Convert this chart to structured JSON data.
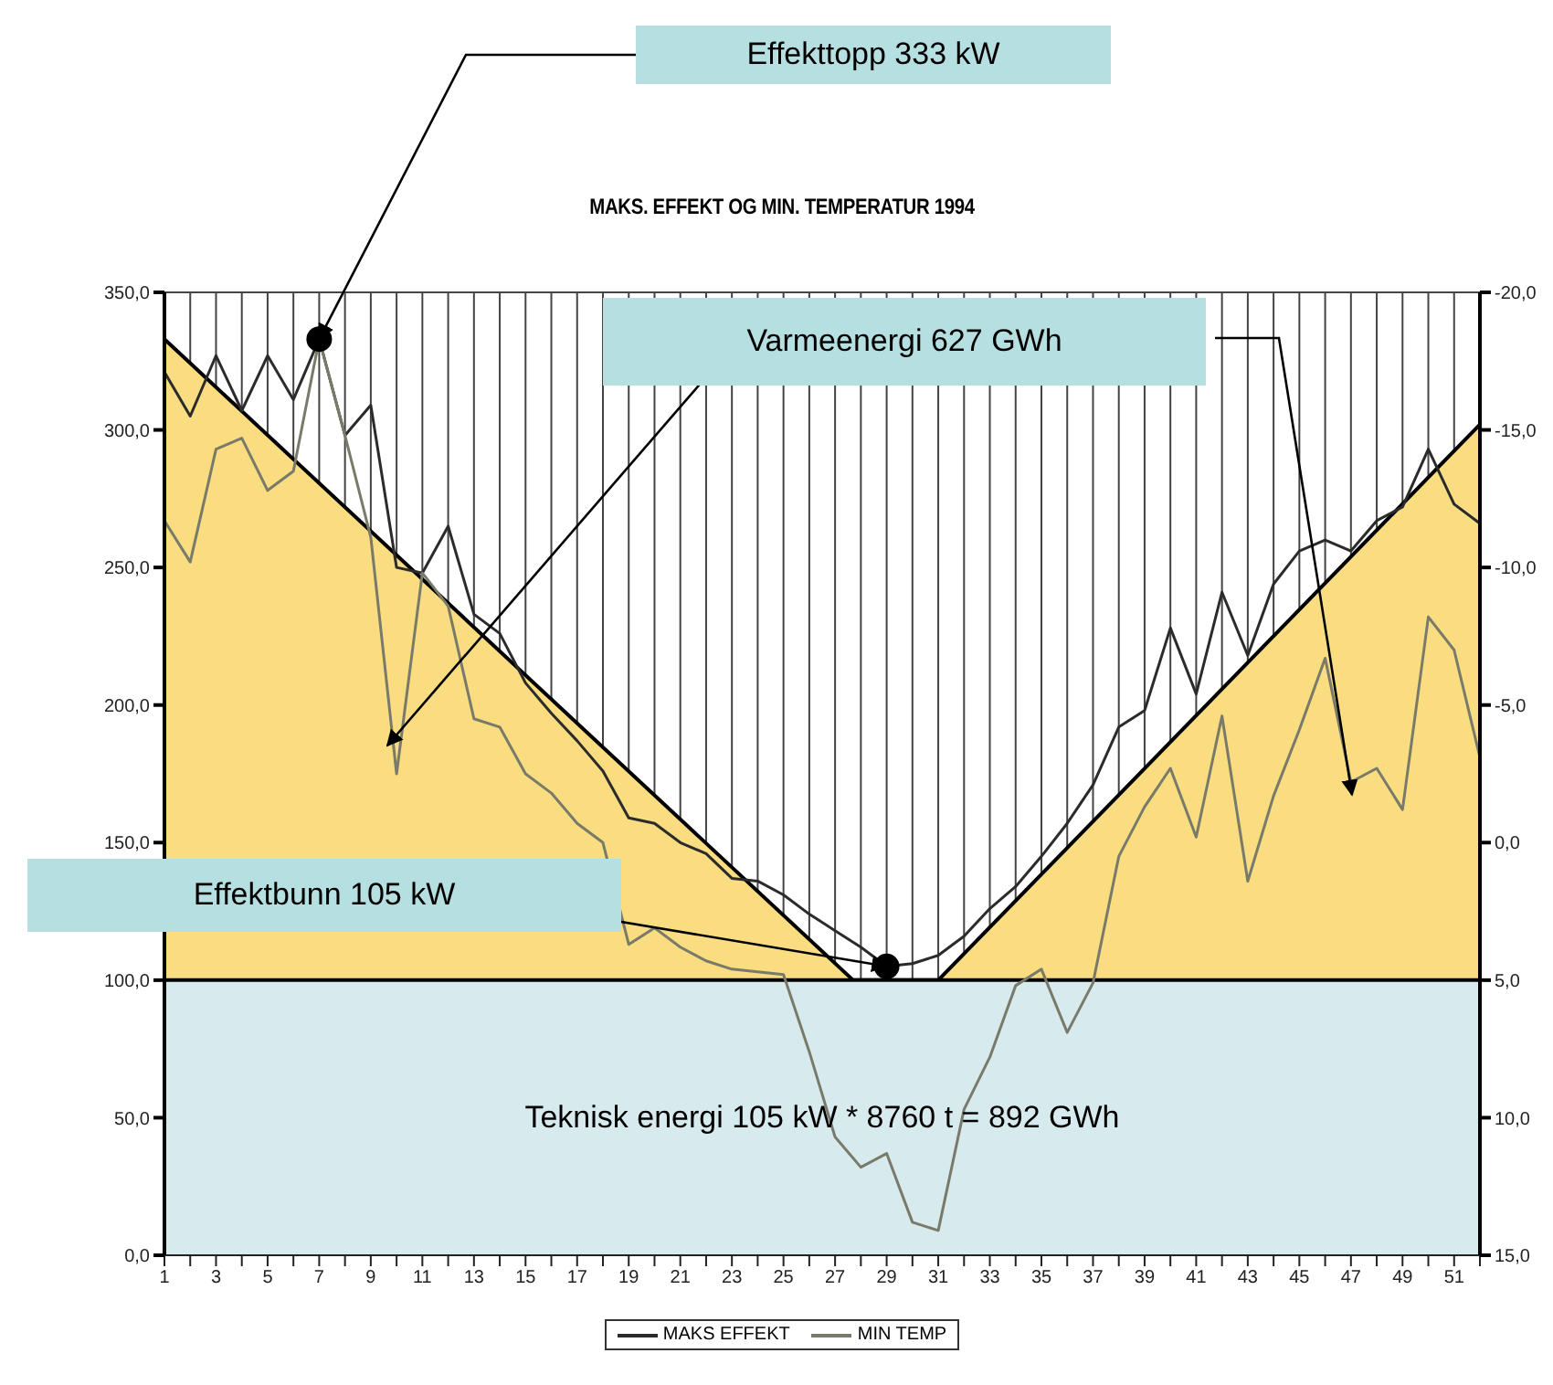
{
  "chart_data": {
    "type": "line",
    "title": "MAKS. EFFEKT OG MIN. TEMPERATUR 1994",
    "x": [
      1,
      2,
      3,
      4,
      5,
      6,
      7,
      8,
      9,
      10,
      11,
      12,
      13,
      14,
      15,
      16,
      17,
      18,
      19,
      20,
      21,
      22,
      23,
      24,
      25,
      26,
      27,
      28,
      29,
      30,
      31,
      32,
      33,
      34,
      35,
      36,
      37,
      38,
      39,
      40,
      41,
      42,
      43,
      44,
      45,
      46,
      47,
      48,
      49,
      50,
      51,
      52
    ],
    "series": [
      {
        "type": "area",
        "color": "#f9dd80",
        "x": [
          1,
          27.7,
          31,
          52
        ],
        "values": [
          333,
          100,
          100,
          302
        ]
      },
      {
        "name": "MAKS EFFEKT",
        "color": "#2b2b2b",
        "values": [
          321,
          305,
          327,
          307,
          327,
          311,
          333,
          298,
          309,
          250,
          248,
          265,
          233,
          226,
          208,
          197,
          187,
          176,
          159,
          157,
          150,
          146,
          137,
          136,
          131,
          124,
          118,
          112,
          105,
          106,
          109,
          116,
          126,
          134,
          145,
          157,
          171,
          192,
          198,
          228,
          204,
          241,
          218,
          244,
          256,
          260,
          256,
          267,
          272,
          293,
          273,
          266
        ]
      },
      {
        "name": "MIN TEMP",
        "color": "#7a7a6a",
        "axis": "y2",
        "values": [
          -11.7,
          -10.2,
          -14.3,
          -14.7,
          -12.8,
          -13.5,
          -18.3,
          -14.8,
          -11.1,
          -2.5,
          -9.8,
          -8.6,
          -4.5,
          -4.2,
          -2.5,
          -1.8,
          -0.7,
          0,
          3.7,
          3.1,
          3.8,
          4.3,
          4.6,
          4.7,
          4.8,
          7.6,
          10.7,
          11.8,
          11.3,
          13.8,
          14.1,
          9.7,
          7.8,
          5.2,
          4.6,
          6.9,
          5.1,
          0.5,
          -1.3,
          -2.7,
          -0.2,
          -4.6,
          1.4,
          -1.7,
          -4.1,
          -6.7,
          -2.2,
          -2.7,
          -1.2,
          -8.2,
          -7,
          -3.1
        ]
      }
    ],
    "xlim": [
      1,
      52
    ],
    "xticks": [
      1,
      {
        "value": 2,
        "label": null
      },
      3,
      {
        "value": 4,
        "label": null
      },
      5,
      {
        "value": 6,
        "label": null
      },
      7,
      {
        "value": 8,
        "label": null
      },
      9,
      {
        "value": 10,
        "label": null
      },
      11,
      {
        "value": 12,
        "label": null
      },
      13,
      {
        "value": 14,
        "label": null
      },
      15,
      {
        "value": 16,
        "label": null
      },
      17,
      {
        "value": 18,
        "label": null
      },
      19,
      {
        "value": 20,
        "label": null
      },
      21,
      {
        "value": 22,
        "label": null
      },
      23,
      {
        "value": 24,
        "label": null
      },
      25,
      {
        "value": 26,
        "label": null
      },
      27,
      {
        "value": 28,
        "label": null
      },
      29,
      {
        "value": 30,
        "label": null
      },
      31,
      {
        "value": 32,
        "label": null
      },
      33,
      {
        "value": 34,
        "label": null
      },
      35,
      {
        "value": 36,
        "label": null
      },
      37,
      {
        "value": 38,
        "label": null
      },
      39,
      {
        "value": 40,
        "label": null
      },
      41,
      {
        "value": 42,
        "label": null
      },
      43,
      {
        "value": 44,
        "label": null
      },
      45,
      {
        "value": 46,
        "label": null
      },
      47,
      {
        "value": 48,
        "label": null
      },
      49,
      {
        "value": 50,
        "label": null
      },
      51,
      {
        "value": 52,
        "label": null
      }
    ],
    "ylim": [
      0,
      350
    ],
    "yticks": [
      {
        "value": 0,
        "label": "0,0"
      },
      {
        "value": 50,
        "label": "50,0"
      },
      {
        "value": 100,
        "label": "100,0"
      },
      {
        "value": 150,
        "label": "150,0"
      },
      {
        "value": 200,
        "label": "200,0"
      },
      {
        "value": 250,
        "label": "250,0"
      },
      {
        "value": 300,
        "label": "300,0"
      },
      {
        "value": 350,
        "label": "350,0"
      }
    ],
    "y2lim": [
      15,
      -20
    ],
    "y2ticks": [
      {
        "value": -20,
        "label": "-20,0"
      },
      {
        "value": -15,
        "label": "-15,0"
      },
      {
        "value": -10,
        "label": "-10,0"
      },
      {
        "value": -5,
        "label": "-5,0"
      },
      {
        "value": 0,
        "label": "0,0"
      },
      {
        "value": 5,
        "label": "5,0"
      },
      {
        "value": 10,
        "label": "10,0"
      },
      {
        "value": 15,
        "label": "15,0"
      }
    ],
    "bands": [
      {
        "axis": "y",
        "from": 0,
        "to": 100,
        "label": "Teknisk energi 105 kW * 8760 t = 892 GWh",
        "color": "#d7ebee"
      }
    ],
    "ref_lines": [
      {
        "axis": "y",
        "value": 100,
        "color": "#000000"
      }
    ],
    "annotations": [
      {
        "text": "Effekttopp 333 kW",
        "x": 7,
        "y": 333
      },
      "Varmeenergi 627 GWh",
      {
        "text": "Effektbunn 105 kW",
        "x": 29,
        "y": 105
      }
    ],
    "grid": true,
    "legend": "bottom",
    "marker": "none",
    "line_style": "solid"
  }
}
